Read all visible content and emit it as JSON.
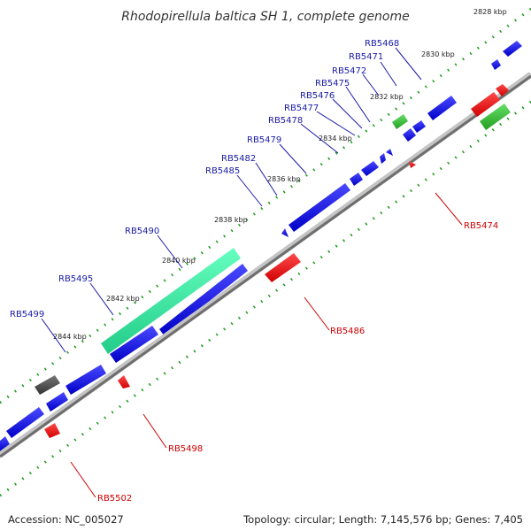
{
  "title": "Rhodopirellula baltica SH 1, complete genome",
  "accession": "Accession: NC_005027",
  "topology": "Topology: circular; Length: 7,145,576 bp; Genes: 7,405",
  "colors": {
    "backbone": "#808080",
    "forward_gene": "#0000dd",
    "reverse_gene": "#ee0000",
    "rna_gene": "#33bb33",
    "highlight_gene": "#33dd99",
    "other_gene": "#555555",
    "tick": "#1a9a1a",
    "label_line_forward": "#1a1aa6",
    "label_line_reverse": "#cc0000"
  },
  "kbp_labels": [
    "2828 kbp",
    "2830 kbp",
    "2832 kbp",
    "2834 kbp",
    "2836 kbp",
    "2838 kbp",
    "2840 kbp",
    "2842 kbp",
    "2844 kbp"
  ],
  "forward_labels": [
    "RB5468",
    "RB5471",
    "RB5472",
    "RB5475",
    "RB5476",
    "RB5477",
    "RB5478",
    "RB5479",
    "RB5482",
    "RB5485",
    "RB5490",
    "RB5495",
    "RB5499"
  ],
  "reverse_labels": [
    "RB5474",
    "RB5486",
    "RB5498",
    "RB5502"
  ]
}
